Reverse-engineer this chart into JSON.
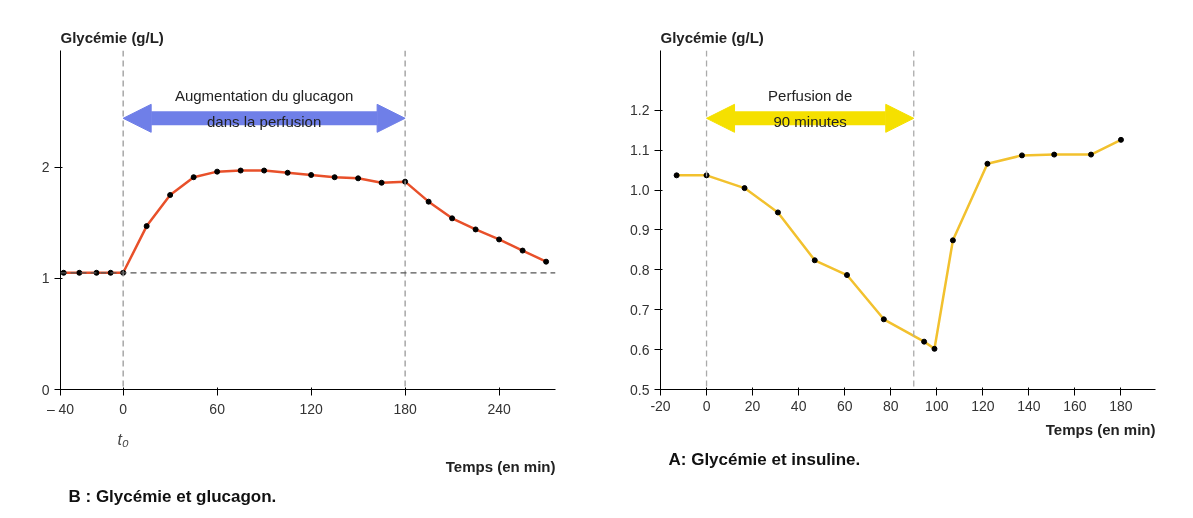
{
  "chart_data": [
    {
      "type": "line",
      "title": "B : Glycémie et glucagon.",
      "xlabel": "Temps (en min)",
      "ylabel": "Glycémie (g/L)",
      "x": [
        -38,
        -28,
        -17,
        -8,
        0,
        15,
        30,
        45,
        60,
        75,
        90,
        105,
        120,
        135,
        150,
        165,
        180,
        195,
        210,
        225,
        240,
        255,
        270
      ],
      "series": [
        {
          "color": "#e8502a",
          "values": [
            1.05,
            1.05,
            1.05,
            1.05,
            1.05,
            1.47,
            1.75,
            1.91,
            1.96,
            1.97,
            1.97,
            1.95,
            1.93,
            1.91,
            1.9,
            1.86,
            1.87,
            1.69,
            1.54,
            1.44,
            1.35,
            1.25,
            1.15
          ]
        }
      ],
      "xlim": [
        -40,
        276
      ],
      "ylim": [
        0,
        3.05
      ],
      "xticks": [
        {
          "value": -40,
          "label": "– 40"
        },
        0,
        60,
        120,
        180,
        240
      ],
      "yticks": [
        0,
        1,
        2
      ],
      "ref_lines": [
        {
          "axis": "x",
          "value": 0,
          "color": "#999999",
          "line_style": "dashed"
        },
        {
          "axis": "x",
          "value": 180,
          "color": "#999999",
          "line_style": "dashed"
        },
        {
          "axis": "y",
          "value": 1.05,
          "color": "#555555",
          "line_style": "dashed"
        }
      ],
      "annotations": [
        "t₀",
        "Augmentation du glucagon\ndans la perfusion"
      ],
      "grid": false,
      "marker": "circle",
      "line_style": "solid"
    },
    {
      "type": "line",
      "title": "A: Glycémie et insuline.",
      "xlabel": "Temps (en min)",
      "ylabel": "Glycémie (g/L)",
      "x": [
        -13,
        0,
        16.5,
        31,
        47,
        61,
        77,
        94.5,
        99,
        107,
        122,
        137,
        151,
        167,
        180
      ],
      "series": [
        {
          "color": "#f2c12e",
          "values": [
            1.037,
            1.037,
            1.005,
            0.944,
            0.824,
            0.787,
            0.676,
            0.62,
            0.602,
            0.874,
            1.066,
            1.087,
            1.089,
            1.089,
            1.126
          ]
        }
      ],
      "xlim": [
        -20,
        195
      ],
      "ylim": [
        0.5,
        1.35
      ],
      "xticks": [
        -20,
        0,
        20,
        40,
        60,
        80,
        100,
        120,
        140,
        160,
        180
      ],
      "yticks": [
        0.5,
        0.6,
        0.7,
        0.8,
        0.9,
        {
          "value": 1.0,
          "label": "1.0"
        },
        1.1,
        1.2
      ],
      "ref_lines": [
        {
          "axis": "x",
          "value": 0,
          "color": "#aaaaaa",
          "line_style": "dashed"
        },
        {
          "axis": "x",
          "value": 90,
          "color": "#aaaaaa",
          "line_style": "dashed"
        }
      ],
      "annotations": [
        "Perfusion de\n90 minutes"
      ],
      "grid": false,
      "marker": "circle",
      "line_style": "solid"
    }
  ]
}
